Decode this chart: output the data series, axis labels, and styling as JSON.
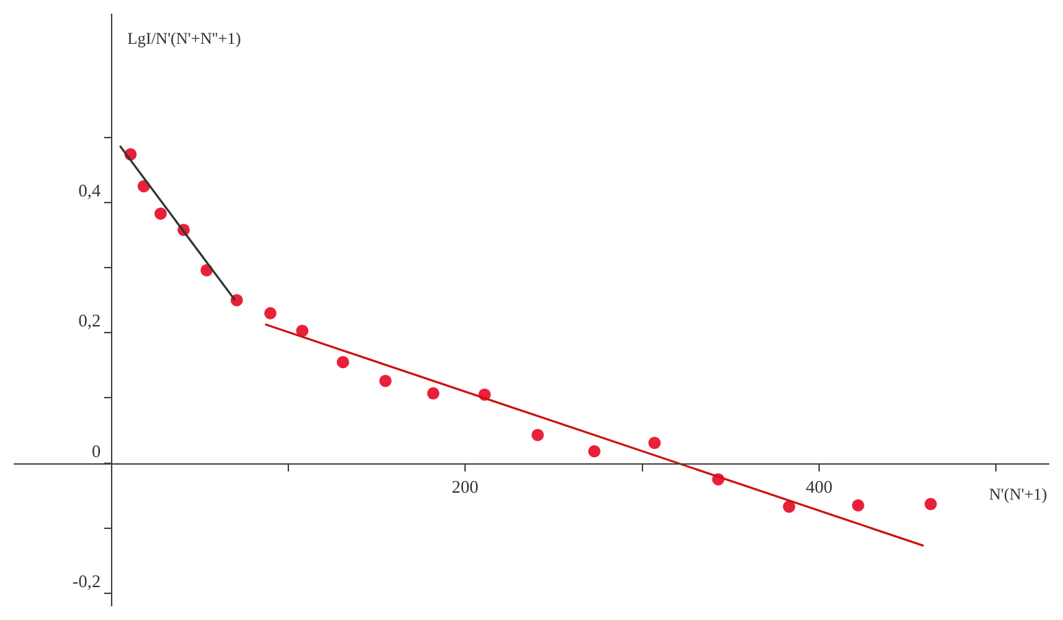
{
  "chart_data": {
    "type": "scatter",
    "xlabel": "N'(N'+1)",
    "ylabel": "LgI/N'(N'+N''+1)",
    "xlim": [
      -55,
      530
    ],
    "ylim": [
      -0.22,
      0.69
    ],
    "xticks": [
      {
        "value": 100,
        "label": null
      },
      200,
      {
        "value": 300,
        "label": null
      },
      400,
      {
        "value": 500,
        "label": null
      }
    ],
    "yticks": [
      {
        "value": -0.2,
        "label": "-0,2"
      },
      {
        "value": -0.1,
        "label": null
      },
      0,
      {
        "value": 0.1,
        "label": null
      },
      {
        "value": 0.2,
        "label": "0,2"
      },
      {
        "value": 0.3,
        "label": null
      },
      {
        "value": 0.4,
        "label": "0,4"
      },
      {
        "value": 0.5,
        "label": null
      }
    ],
    "grid": false,
    "series": [
      {
        "marker": "circle",
        "color": "#e8203a",
        "x": [
          11,
          18.5,
          28,
          41,
          54,
          71,
          90,
          108,
          131,
          155,
          182,
          211,
          241,
          273,
          307,
          343,
          383,
          422,
          463
        ],
        "values": [
          0.474,
          0.425,
          0.383,
          0.358,
          0.296,
          0.25,
          0.23,
          0.203,
          0.155,
          0.126,
          0.107,
          0.105,
          0.043,
          0.018,
          0.031,
          -0.025,
          -0.067,
          -0.065,
          -0.063
        ]
      },
      {
        "type": "line",
        "color": "#333333",
        "x": [
          5,
          70
        ],
        "values": [
          0.487,
          0.25
        ]
      },
      {
        "type": "line",
        "color": "#cc1111",
        "x": [
          87,
          459
        ],
        "values": [
          0.213,
          -0.127
        ]
      }
    ]
  }
}
